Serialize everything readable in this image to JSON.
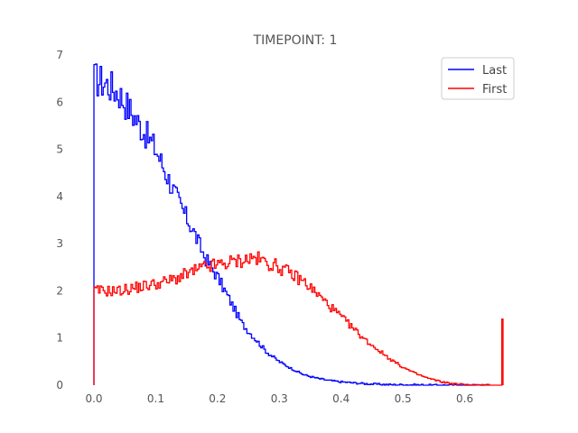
{
  "chart_data": {
    "type": "line",
    "title": "TIMEPOINT: 1",
    "xlabel": "",
    "ylabel": "",
    "xlim": [
      0,
      0.7
    ],
    "ylim": [
      0,
      7
    ],
    "xticks": [
      "0.0",
      "0.1",
      "0.2",
      "0.3",
      "0.4",
      "0.5",
      "0.6"
    ],
    "yticks": [
      "0",
      "1",
      "2",
      "3",
      "4",
      "5",
      "6",
      "7"
    ],
    "grid": false,
    "legend_position": "top-right",
    "series": [
      {
        "name": "Last",
        "color": "#0000ff",
        "style": "step histogram (density)",
        "x": [
          0.0,
          0.02,
          0.04,
          0.06,
          0.08,
          0.1,
          0.12,
          0.14,
          0.16,
          0.18,
          0.2,
          0.22,
          0.24,
          0.26,
          0.28,
          0.3,
          0.32,
          0.34,
          0.36,
          0.38,
          0.4,
          0.42,
          0.44,
          0.46,
          0.48,
          0.5,
          0.55,
          0.6,
          0.66
        ],
        "y": [
          6.5,
          6.4,
          6.2,
          5.8,
          5.4,
          5.0,
          4.4,
          3.8,
          3.3,
          2.7,
          2.3,
          1.8,
          1.3,
          1.0,
          0.7,
          0.5,
          0.35,
          0.22,
          0.15,
          0.1,
          0.07,
          0.05,
          0.03,
          0.02,
          0.01,
          0.01,
          0.0,
          0.0,
          0.0
        ]
      },
      {
        "name": "First",
        "color": "#ff0000",
        "style": "step histogram (density)",
        "x": [
          0.0,
          0.02,
          0.04,
          0.06,
          0.08,
          0.1,
          0.12,
          0.14,
          0.16,
          0.18,
          0.2,
          0.22,
          0.24,
          0.26,
          0.28,
          0.3,
          0.32,
          0.34,
          0.36,
          0.38,
          0.4,
          0.42,
          0.44,
          0.46,
          0.48,
          0.5,
          0.52,
          0.54,
          0.56,
          0.58,
          0.6,
          0.62,
          0.64,
          0.66
        ],
        "y": [
          2.0,
          2.0,
          2.0,
          2.05,
          2.1,
          2.15,
          2.2,
          2.3,
          2.4,
          2.5,
          2.55,
          2.6,
          2.65,
          2.7,
          2.6,
          2.5,
          2.35,
          2.2,
          1.95,
          1.7,
          1.45,
          1.2,
          0.95,
          0.75,
          0.55,
          0.38,
          0.25,
          0.15,
          0.08,
          0.03,
          0.01,
          0.0,
          0.0,
          1.4
        ]
      }
    ]
  }
}
